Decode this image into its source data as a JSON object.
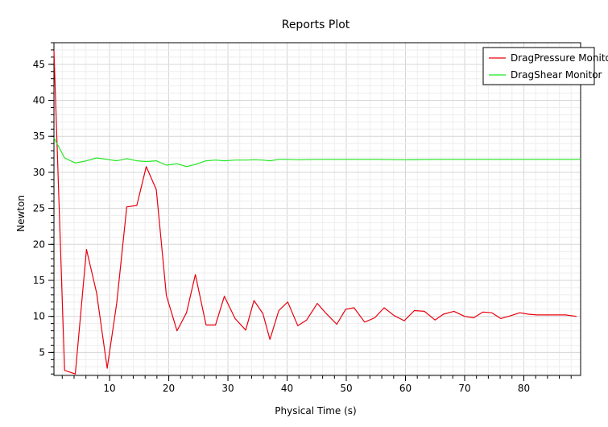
{
  "chart_data": {
    "type": "line",
    "title": "Reports Plot",
    "xlabel": "Physical Time (s)",
    "ylabel": "Newton",
    "xlim": [
      0.6,
      89.6
    ],
    "ylim": [
      1.8,
      48.0
    ],
    "xticks": [
      10,
      20,
      30,
      40,
      50,
      60,
      70,
      80
    ],
    "yticks": [
      5,
      10,
      15,
      20,
      25,
      30,
      35,
      40,
      45
    ],
    "grid": true,
    "legend_position": "top-right",
    "series": [
      {
        "name": "DragPressure Monitor",
        "color": "#e8000d",
        "x": [
          0.6,
          2.4,
          4.2,
          6.1,
          7.8,
          9.6,
          11.2,
          12.9,
          14.6,
          16.2,
          17.9,
          19.6,
          21.4,
          23.0,
          24.5,
          26.3,
          27.9,
          29.4,
          31.2,
          33.0,
          34.4,
          35.9,
          37.1,
          38.6,
          40.1,
          41.8,
          43.3,
          45.1,
          46.6,
          48.4,
          49.9,
          51.3,
          53.1,
          54.8,
          56.4,
          58.1,
          59.8,
          61.5,
          63.2,
          65.0,
          66.4,
          68.2,
          70.0,
          71.5,
          73.1,
          74.6,
          76.1,
          77.8,
          79.3,
          80.8,
          82.2,
          83.9,
          85.5,
          87.0,
          88.9
        ],
        "y": [
          46.9,
          2.5,
          2.0,
          19.3,
          13.3,
          2.8,
          11.8,
          25.2,
          25.4,
          30.8,
          27.6,
          12.9,
          8.0,
          10.5,
          15.8,
          8.8,
          8.8,
          12.8,
          9.7,
          8.1,
          12.2,
          10.4,
          6.8,
          10.8,
          12.0,
          8.7,
          9.5,
          11.8,
          10.4,
          8.9,
          11.0,
          11.2,
          9.2,
          9.8,
          11.2,
          10.1,
          9.4,
          10.8,
          10.7,
          9.5,
          10.3,
          10.7,
          10.0,
          9.8,
          10.6,
          10.5,
          9.7,
          10.1,
          10.5,
          10.3,
          10.2,
          10.2,
          10.2,
          10.2,
          10.0
        ]
      },
      {
        "name": "DragShear Monitor",
        "color": "#22e622",
        "x": [
          0.6,
          2.4,
          4.2,
          6.1,
          7.8,
          9.6,
          11.2,
          12.9,
          14.6,
          16.2,
          17.9,
          19.6,
          21.4,
          23.0,
          24.5,
          26.3,
          27.9,
          29.4,
          31.2,
          33.0,
          34.4,
          35.9,
          37.1,
          38.6,
          40.1,
          41.8,
          45.0,
          50.0,
          55.0,
          60.0,
          65.0,
          70.0,
          75.0,
          80.0,
          85.0,
          89.6
        ],
        "y": [
          34.8,
          32.0,
          31.3,
          31.6,
          32.0,
          31.8,
          31.6,
          31.9,
          31.6,
          31.5,
          31.6,
          31.0,
          31.2,
          30.8,
          31.1,
          31.6,
          31.7,
          31.6,
          31.7,
          31.7,
          31.75,
          31.7,
          31.6,
          31.8,
          31.8,
          31.75,
          31.8,
          31.8,
          31.8,
          31.75,
          31.8,
          31.8,
          31.8,
          31.8,
          31.8,
          31.8
        ]
      }
    ]
  }
}
